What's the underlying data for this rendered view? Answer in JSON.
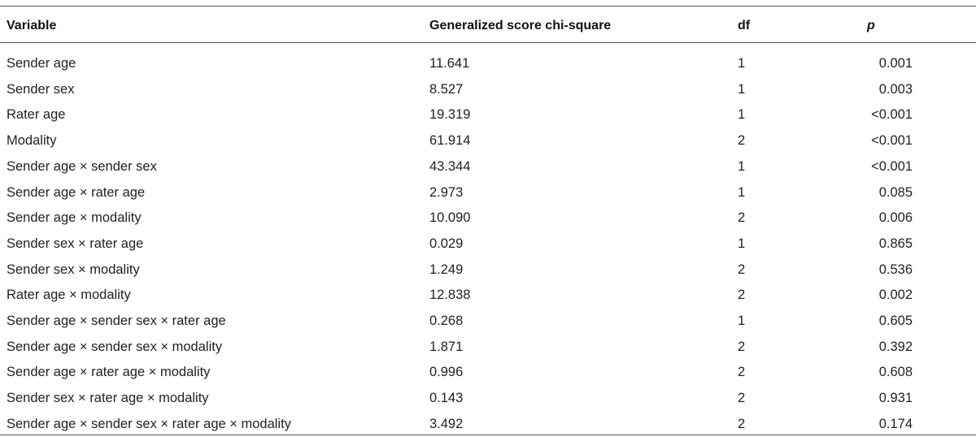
{
  "table": {
    "headers": {
      "variable": "Variable",
      "chi": "Generalized score chi-square",
      "df": "df",
      "p": "p"
    },
    "rows": [
      {
        "variable": "Sender age",
        "chi": "11.641",
        "df": "1",
        "p": "0.001"
      },
      {
        "variable": "Sender sex",
        "chi": "8.527",
        "df": "1",
        "p": "0.003"
      },
      {
        "variable": "Rater age",
        "chi": "19.319",
        "df": "1",
        "p": "<0.001"
      },
      {
        "variable": "Modality",
        "chi": "61.914",
        "df": "2",
        "p": "<0.001"
      },
      {
        "variable": "Sender age × sender sex",
        "chi": "43.344",
        "df": "1",
        "p": "<0.001"
      },
      {
        "variable": "Sender age × rater age",
        "chi": "2.973",
        "df": "1",
        "p": "0.085"
      },
      {
        "variable": "Sender age × modality",
        "chi": "10.090",
        "df": "2",
        "p": "0.006"
      },
      {
        "variable": "Sender sex × rater age",
        "chi": "0.029",
        "df": "1",
        "p": "0.865"
      },
      {
        "variable": "Sender sex × modality",
        "chi": "1.249",
        "df": "2",
        "p": "0.536"
      },
      {
        "variable": "Rater age × modality",
        "chi": "12.838",
        "df": "2",
        "p": "0.002"
      },
      {
        "variable": "Sender age × sender sex × rater age",
        "chi": "0.268",
        "df": "1",
        "p": "0.605"
      },
      {
        "variable": "Sender age × sender sex × modality",
        "chi": "1.871",
        "df": "2",
        "p": "0.392"
      },
      {
        "variable": "Sender age × rater age × modality",
        "chi": "0.996",
        "df": "2",
        "p": "0.608"
      },
      {
        "variable": "Sender sex × rater age × modality",
        "chi": "0.143",
        "df": "2",
        "p": "0.931"
      },
      {
        "variable": "Sender age × sender sex × rater age × modality",
        "chi": "3.492",
        "df": "2",
        "p": "0.174"
      }
    ]
  }
}
